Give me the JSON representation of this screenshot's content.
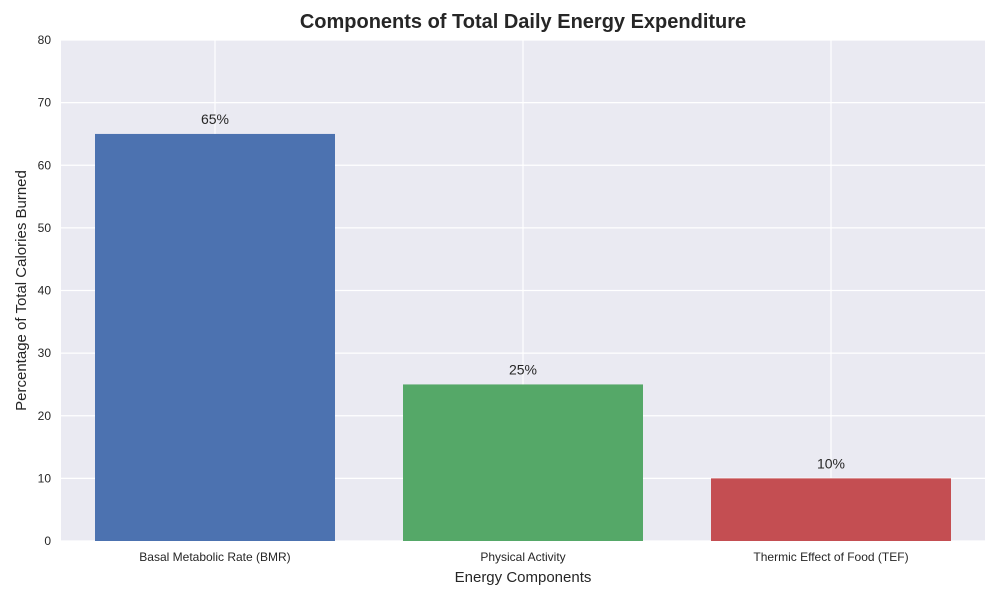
{
  "chart_data": {
    "type": "bar",
    "title": "Components of Total Daily Energy Expenditure",
    "xlabel": "Energy Components",
    "ylabel": "Percentage of Total Calories Burned",
    "categories": [
      "Basal Metabolic Rate (BMR)",
      "Physical Activity",
      "Thermic Effect of Food (TEF)"
    ],
    "values": [
      65,
      25,
      10
    ],
    "data_labels": [
      "65%",
      "25%",
      "10%"
    ],
    "colors": [
      "#4c72b0",
      "#55a868",
      "#c44e52"
    ],
    "ylim": [
      0,
      80
    ],
    "yticks": [
      0,
      10,
      20,
      30,
      40,
      50,
      60,
      70,
      80
    ],
    "grid": true,
    "legend": "none",
    "background_color": "#eaeaf2",
    "grid_color": "#ffffff"
  }
}
